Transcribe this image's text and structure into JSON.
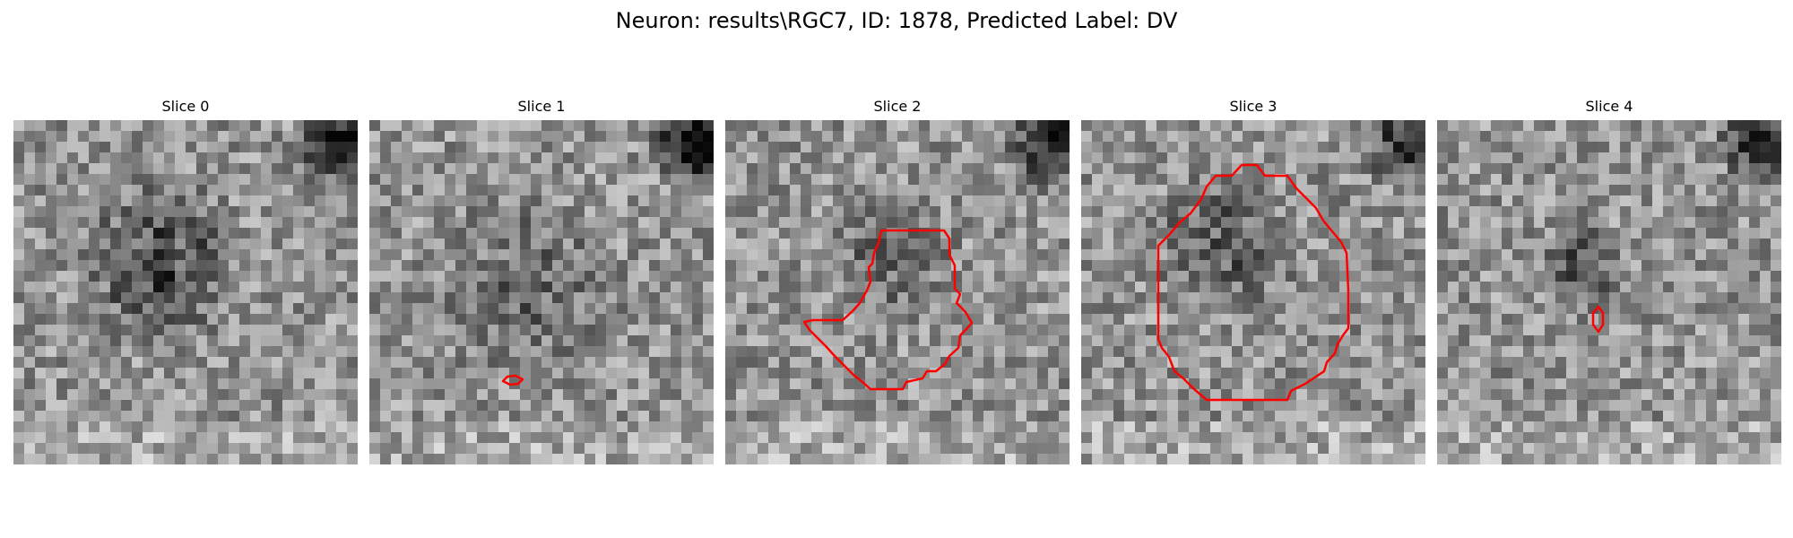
{
  "figure": {
    "title": "Neuron: results\\RGC7, ID: 1878, Predicted Label: DV"
  },
  "panels": [
    {
      "title": "Slice 0",
      "has_contour": false,
      "dark_patch": "center-large"
    },
    {
      "title": "Slice 1",
      "has_contour": true,
      "contour_size": "tiny",
      "dark_patch": "faint-center"
    },
    {
      "title": "Slice 2",
      "has_contour": true,
      "contour_size": "medium",
      "dark_patch": "center"
    },
    {
      "title": "Slice 3",
      "has_contour": true,
      "contour_size": "large",
      "dark_patch": "center-large"
    },
    {
      "title": "Slice 4",
      "has_contour": true,
      "contour_size": "tiny",
      "dark_patch": "center-small"
    }
  ],
  "colors": {
    "contour": "#ff0000",
    "background": "#ffffff"
  },
  "image": {
    "grid": 32,
    "colormap": "gray"
  }
}
